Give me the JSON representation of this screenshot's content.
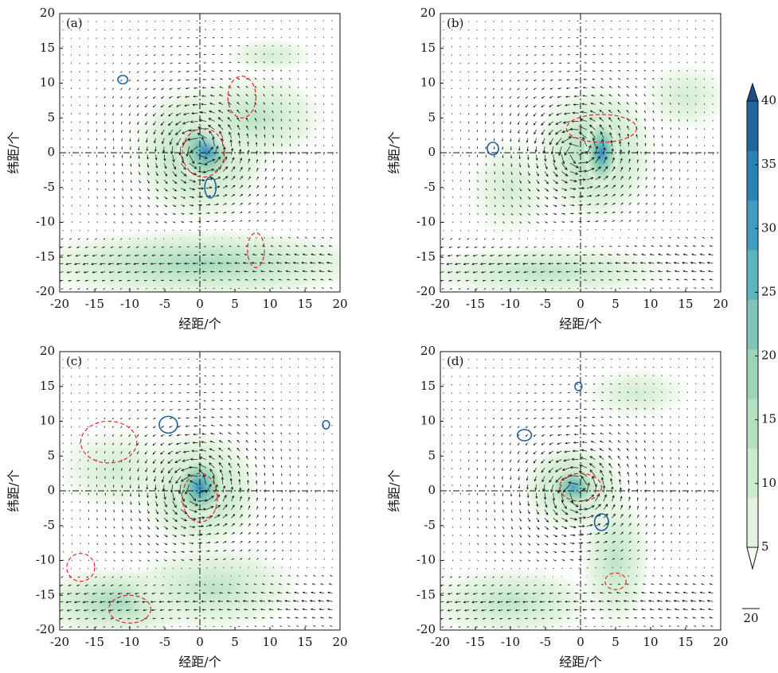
{
  "chart_data": [
    {
      "type": "vector",
      "panel_label": "(a)",
      "xlabel": "经距/个",
      "ylabel": "纬距/个",
      "xlim": [
        -20,
        20
      ],
      "ylim": [
        -20,
        20
      ],
      "xticks": [
        -20,
        -15,
        -10,
        -5,
        0,
        5,
        10,
        15,
        20
      ],
      "yticks": [
        -20,
        -15,
        -10,
        -5,
        0,
        5,
        10,
        15,
        20
      ]
    },
    {
      "type": "vector",
      "panel_label": "(b)",
      "xlabel": "经距/个",
      "ylabel": "纬距/个",
      "xlim": [
        -20,
        20
      ],
      "ylim": [
        -20,
        20
      ],
      "xticks": [
        -20,
        -15,
        -10,
        -5,
        0,
        5,
        10,
        15,
        20
      ],
      "yticks": [
        -20,
        -15,
        -10,
        -5,
        0,
        5,
        10,
        15,
        20
      ]
    },
    {
      "type": "vector",
      "panel_label": "(c)",
      "xlabel": "经距/个",
      "ylabel": "纬距/个",
      "xlim": [
        -20,
        20
      ],
      "ylim": [
        -20,
        20
      ],
      "xticks": [
        -20,
        -15,
        -10,
        -5,
        0,
        5,
        10,
        15,
        20
      ],
      "yticks": [
        -20,
        -15,
        -10,
        -5,
        0,
        5,
        10,
        15,
        20
      ]
    },
    {
      "type": "vector",
      "panel_label": "(d)",
      "xlabel": "经距/个",
      "ylabel": "纬距/个",
      "xlim": [
        -20,
        20
      ],
      "ylim": [
        -20,
        20
      ],
      "xticks": [
        -20,
        -15,
        -10,
        -5,
        0,
        5,
        10,
        15,
        20
      ],
      "yticks": [
        -20,
        -15,
        -10,
        -5,
        0,
        5,
        10,
        15,
        20
      ]
    }
  ],
  "colorbar": {
    "lim": [
      5,
      40
    ],
    "ticks": [
      5,
      10,
      15,
      20,
      25,
      30,
      35,
      40
    ],
    "colors": [
      "#f4fbf2",
      "#e3f3df",
      "#cdebcf",
      "#b5e0c1",
      "#9bd4b8",
      "#7fc6b7",
      "#5fb3bd",
      "#3f9dc0",
      "#2b82b5",
      "#1f66a0",
      "#1c4d86"
    ]
  },
  "reference_vector": 20
}
